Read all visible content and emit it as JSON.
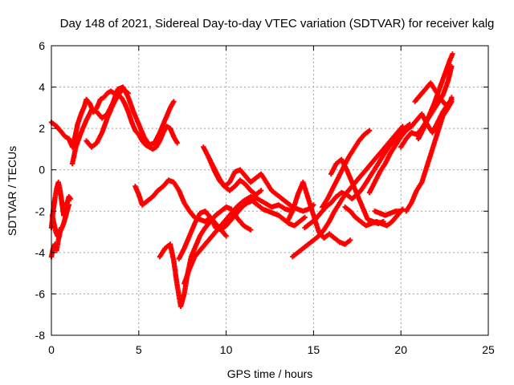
{
  "chart_data": {
    "type": "scatter",
    "title": "Day 148 of 2021, Sidereal Day-to-day VTEC variation (SDTVAR) for receiver kalg",
    "xlabel": "GPS time / hours",
    "ylabel": "SDTVAR / TECUs",
    "xlim": [
      0,
      25
    ],
    "ylim": [
      -8,
      6
    ],
    "xticks": [
      "0",
      "5",
      "10",
      "15",
      "20",
      "25"
    ],
    "yticks": [
      "-8",
      "-6",
      "-4",
      "-2",
      "0",
      "2",
      "4",
      "6"
    ],
    "grid": true,
    "marker": "plus",
    "color": "#ff0000",
    "series": [
      {
        "x": [
          0.0,
          0.3,
          0.6,
          0.8,
          1.0,
          1.2,
          1.35,
          1.5,
          1.7,
          1.9,
          2.0,
          2.2,
          2.4,
          2.6,
          2.8,
          3.0,
          3.2,
          3.4,
          3.6,
          3.8,
          4.0,
          4.2,
          4.4,
          4.6,
          4.8,
          5.0,
          5.2,
          5.4,
          5.6,
          5.8,
          6.0,
          6.2,
          6.4,
          6.6,
          6.8,
          7.0,
          7.2
        ],
        "y": [
          2.3,
          2.1,
          1.8,
          1.6,
          1.5,
          1.1,
          1.6,
          2.2,
          2.7,
          3.1,
          3.4,
          3.2,
          2.8,
          3.0,
          3.4,
          3.5,
          3.7,
          3.8,
          3.7,
          3.6,
          3.5,
          3.2,
          2.8,
          2.3,
          1.9,
          1.7,
          1.4,
          1.2,
          1.1,
          1.0,
          1.1,
          1.4,
          1.8,
          2.1,
          2.0,
          1.6,
          1.3
        ]
      },
      {
        "x": [
          1.2,
          1.4,
          1.7,
          2.0,
          2.3,
          2.6,
          2.9,
          3.2,
          3.5,
          3.8,
          4.1,
          4.4,
          4.7,
          5.0,
          5.3,
          5.6,
          5.9,
          6.2,
          6.5,
          6.8,
          7.0
        ],
        "y": [
          0.3,
          1.1,
          1.8,
          2.4,
          2.9,
          2.8,
          2.5,
          2.7,
          3.2,
          3.9,
          4.0,
          3.5,
          2.8,
          2.2,
          1.6,
          1.2,
          1.3,
          1.8,
          2.4,
          3.0,
          3.3
        ]
      },
      {
        "x": [
          2.0,
          2.3,
          2.6,
          2.9,
          3.2,
          3.5,
          3.8,
          4.1,
          4.4
        ],
        "y": [
          1.4,
          1.1,
          1.3,
          1.8,
          2.5,
          3.1,
          3.6,
          3.9,
          3.7
        ]
      },
      {
        "x": [
          0.0,
          0.1,
          0.2,
          0.3,
          0.4,
          0.5,
          0.6,
          0.7,
          0.8,
          0.9,
          1.0,
          1.1
        ],
        "y": [
          -2.8,
          -2.0,
          -1.4,
          -0.9,
          -0.6,
          -1.0,
          -1.6,
          -2.2,
          -2.0,
          -1.6,
          -1.3,
          -1.4
        ]
      },
      {
        "x": [
          0.0,
          0.1,
          0.2,
          0.3,
          0.4,
          0.5,
          0.6,
          0.7,
          0.8,
          0.9,
          1.0
        ],
        "y": [
          -4.2,
          -3.8,
          -3.6,
          -3.9,
          -3.4,
          -3.0,
          -2.8,
          -2.6,
          -2.3,
          -2.0,
          -1.7
        ]
      },
      {
        "x": [
          0.05,
          0.15,
          0.25,
          0.35,
          0.45
        ],
        "y": [
          -2.2,
          -2.6,
          -3.0,
          -3.2,
          -2.9
        ]
      },
      {
        "x": [
          4.8,
          5.0,
          5.2,
          5.5,
          5.8,
          6.1,
          6.4,
          6.7,
          7.0,
          7.3,
          7.6,
          7.9,
          8.2,
          8.5,
          8.8,
          9.1,
          9.4,
          9.7,
          10.0
        ],
        "y": [
          -0.8,
          -1.2,
          -1.7,
          -1.5,
          -1.3,
          -1.0,
          -0.8,
          -0.5,
          -0.6,
          -1.0,
          -1.6,
          -2.0,
          -2.3,
          -2.4,
          -2.5,
          -2.3,
          -2.6,
          -2.9,
          -3.2
        ]
      },
      {
        "x": [
          6.2,
          6.5,
          6.8,
          7.0,
          7.2,
          7.4,
          7.6,
          7.8,
          8.0,
          8.2,
          8.5,
          8.8,
          9.1,
          9.4,
          9.7,
          10.0,
          10.3,
          10.6,
          11.0,
          11.4
        ],
        "y": [
          -4.2,
          -3.8,
          -3.6,
          -4.4,
          -5.6,
          -6.6,
          -6.0,
          -5.0,
          -4.2,
          -3.8,
          -3.2,
          -2.8,
          -2.5,
          -2.2,
          -2.0,
          -1.8,
          -1.9,
          -2.3,
          -2.7,
          -2.9
        ]
      },
      {
        "x": [
          7.3,
          7.6,
          7.9,
          8.2,
          8.5,
          8.8,
          9.1,
          9.4,
          9.7,
          10.0,
          10.3,
          10.6,
          10.9,
          11.2,
          11.5,
          11.8,
          12.1,
          12.4,
          12.7,
          13.0,
          13.3,
          13.6,
          13.9,
          14.2,
          14.5
        ],
        "y": [
          -4.3,
          -3.8,
          -3.2,
          -2.6,
          -2.1,
          -2.0,
          -2.3,
          -2.8,
          -2.9,
          -2.7,
          -2.4,
          -2.1,
          -1.8,
          -1.6,
          -1.5,
          -1.7,
          -1.9,
          -2.0,
          -2.1,
          -2.2,
          -2.4,
          -2.6,
          -2.7,
          -2.5,
          -2.3
        ]
      },
      {
        "x": [
          7.6,
          7.9,
          8.2,
          8.6,
          9.0,
          9.4,
          9.8,
          10.2,
          10.6,
          11.0,
          11.4,
          11.8,
          12.2,
          12.6,
          13.0,
          13.4,
          13.8
        ],
        "y": [
          -5.5,
          -4.8,
          -4.2,
          -3.8,
          -3.4,
          -3.0,
          -2.6,
          -2.2,
          -1.8,
          -1.5,
          -1.3,
          -1.4,
          -1.6,
          -1.8,
          -1.7,
          -1.9,
          -2.0
        ]
      },
      {
        "x": [
          8.7,
          9.0,
          9.3,
          9.6,
          9.9,
          10.2,
          10.5,
          10.8,
          11.1,
          11.4,
          11.7,
          12.0,
          12.3,
          12.6,
          12.9,
          13.2,
          13.5,
          13.8,
          14.1,
          14.4,
          14.7,
          15.0
        ],
        "y": [
          1.1,
          0.6,
          0.0,
          -0.5,
          -0.8,
          -0.6,
          -0.1,
          0.0,
          -0.3,
          -0.6,
          -0.4,
          -0.2,
          -0.6,
          -1.0,
          -1.2,
          -1.4,
          -1.6,
          -1.8,
          -1.9,
          -2.0,
          -1.9,
          -1.7
        ]
      },
      {
        "x": [
          9.0,
          9.3,
          9.6,
          9.9,
          10.2,
          10.5,
          10.8,
          11.1,
          11.4,
          11.7,
          12.0
        ],
        "y": [
          0.6,
          0.1,
          -0.4,
          -0.8,
          -1.0,
          -0.8,
          -0.5,
          -0.7,
          -1.0,
          -1.2,
          -1.0
        ]
      },
      {
        "x": [
          13.5,
          13.8,
          14.1,
          14.4,
          14.7,
          15.0,
          15.3,
          15.6,
          15.9,
          16.2,
          16.5,
          16.8,
          17.1
        ],
        "y": [
          -2.5,
          -2.0,
          -1.2,
          -0.6,
          -1.4,
          -2.2,
          -3.0,
          -3.3,
          -3.1,
          -3.3,
          -3.5,
          -3.6,
          -3.4
        ]
      },
      {
        "x": [
          13.8,
          14.1,
          14.4,
          14.7,
          15.0,
          15.3,
          15.6,
          15.9,
          16.2,
          16.5,
          16.8,
          17.1,
          17.4,
          17.7,
          18.0,
          18.3,
          18.6,
          18.9,
          19.2,
          19.5,
          19.8,
          20.1
        ],
        "y": [
          -4.2,
          -4.0,
          -3.8,
          -3.6,
          -3.4,
          -3.2,
          -2.9,
          -2.5,
          -2.0,
          -1.6,
          -1.2,
          -0.9,
          -0.6,
          -0.3,
          0.0,
          0.3,
          0.6,
          0.9,
          1.2,
          1.5,
          1.8,
          2.1
        ]
      },
      {
        "x": [
          14.5,
          14.8,
          15.1,
          15.4,
          15.7,
          16.0,
          16.3,
          16.6,
          16.9,
          17.2,
          17.5,
          17.8,
          18.1,
          18.4,
          18.7,
          19.0,
          19.3,
          19.6,
          19.9,
          20.2,
          20.5
        ],
        "y": [
          -2.8,
          -2.6,
          -2.4,
          -2.1,
          -1.8,
          -1.6,
          -1.3,
          -1.1,
          -1.2,
          -1.4,
          -1.2,
          -0.9,
          -0.5,
          -0.1,
          0.3,
          0.7,
          1.1,
          1.4,
          1.7,
          2.0,
          2.2
        ]
      },
      {
        "x": [
          15.5,
          15.8,
          16.1,
          16.4,
          16.7,
          17.0,
          17.3,
          17.6,
          17.9,
          18.2
        ],
        "y": [
          -1.8,
          -1.4,
          -0.9,
          -0.4,
          0.1,
          0.6,
          1.0,
          1.4,
          1.7,
          1.9
        ]
      },
      {
        "x": [
          16.0,
          16.3,
          16.6,
          16.9,
          17.2,
          17.5,
          17.8,
          18.1,
          18.4,
          18.7,
          19.0
        ],
        "y": [
          -0.2,
          0.3,
          0.5,
          0.0,
          -0.6,
          -1.2,
          -1.8,
          -2.4,
          -2.5,
          -2.6,
          -2.5
        ]
      },
      {
        "x": [
          16.8,
          17.1,
          17.4,
          17.7,
          18.0,
          18.3,
          18.6,
          18.9,
          19.2,
          19.5,
          19.8,
          20.1
        ],
        "y": [
          -1.8,
          -2.0,
          -2.3,
          -2.5,
          -2.7,
          -2.6,
          -2.5,
          -2.6,
          -2.7,
          -2.5,
          -2.2,
          -1.9
        ]
      },
      {
        "x": [
          18.5,
          18.8,
          19.1,
          19.4,
          19.7,
          20.0
        ],
        "y": [
          -2.0,
          -2.1,
          -2.2,
          -2.1,
          -2.0,
          -2.0
        ]
      },
      {
        "x": [
          18.2,
          18.5,
          18.8,
          19.1,
          19.4,
          19.7,
          20.0,
          20.3,
          20.6,
          20.9,
          21.2,
          21.5,
          21.8,
          22.1,
          22.4,
          22.7,
          22.9
        ],
        "y": [
          -1.1,
          -0.6,
          -0.1,
          0.3,
          0.8,
          1.2,
          1.6,
          1.9,
          2.1,
          2.4,
          2.7,
          2.2,
          1.8,
          2.3,
          2.8,
          3.2,
          3.4
        ]
      },
      {
        "x": [
          20.0,
          20.3,
          20.6,
          20.9,
          21.2,
          21.5,
          21.8,
          22.1,
          22.4,
          22.7,
          22.9
        ],
        "y": [
          1.1,
          1.5,
          1.8,
          1.7,
          2.0,
          2.4,
          2.8,
          3.2,
          3.6,
          4.3,
          5.0
        ]
      },
      {
        "x": [
          20.3,
          20.6,
          20.9,
          21.2,
          21.5,
          21.8,
          22.1,
          22.4,
          22.7,
          22.9
        ],
        "y": [
          -2.0,
          -1.6,
          -1.0,
          -0.6,
          0.2,
          1.0,
          1.8,
          2.6,
          3.0,
          3.3
        ]
      },
      {
        "x": [
          20.8,
          21.1,
          21.4,
          21.7,
          22.0,
          22.3,
          22.6,
          22.8,
          22.9
        ],
        "y": [
          3.3,
          3.6,
          3.9,
          4.2,
          3.8,
          3.4,
          3.1,
          3.2,
          3.5
        ]
      },
      {
        "x": [
          21.0,
          21.3,
          21.6,
          21.9,
          22.2,
          22.5,
          22.8,
          22.95
        ],
        "y": [
          1.5,
          2.0,
          2.6,
          3.2,
          3.9,
          4.6,
          5.3,
          5.6
        ]
      }
    ]
  }
}
